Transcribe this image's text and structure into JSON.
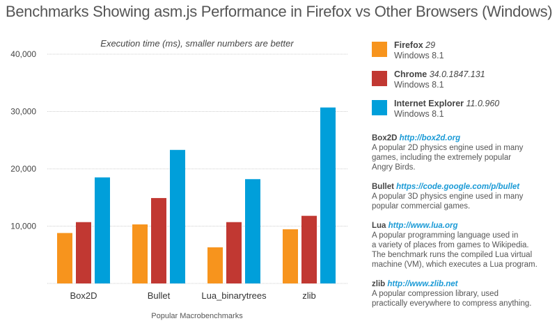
{
  "title": "Benchmarks Showing asm.js Performance in Firefox vs Other Browsers (Windows)",
  "chart_data": {
    "type": "bar",
    "title": "Execution time (ms), smaller numbers are better",
    "xlabel": "Popular Macrobenchmarks",
    "ylabel": "",
    "ylim": [
      0,
      40000
    ],
    "yticks": [
      "10,000",
      "20,000",
      "30,000",
      "40,000"
    ],
    "ytick_values": [
      10000,
      20000,
      30000,
      40000
    ],
    "grid": true,
    "legend_position": "right",
    "categories": [
      "Box2D",
      "Bullet",
      "Lua_binarytrees",
      "zlib"
    ],
    "series": [
      {
        "name": "Firefox",
        "version": "29",
        "os": "Windows 8.1",
        "color": "#f7941d",
        "values": [
          8800,
          10300,
          6300,
          9450
        ]
      },
      {
        "name": "Chrome",
        "version": "34.0.1847.131",
        "os": "Windows 8.1",
        "color": "#c13832",
        "values": [
          10700,
          14900,
          10700,
          11800
        ]
      },
      {
        "name": "Internet Explorer",
        "version": "11.0.960",
        "os": "Windows 8.1",
        "color": "#009fda",
        "values": [
          18500,
          23300,
          18200,
          30700
        ]
      }
    ]
  },
  "descriptions": [
    {
      "name": "Box2D",
      "url": "http://box2d.org",
      "lines": [
        "A popular 2D physics engine used in many",
        "games, including the extremely popular",
        "Angry Birds."
      ]
    },
    {
      "name": "Bullet",
      "url": "https://code.google.com/p/bullet",
      "lines": [
        "A popular 3D physics engine used in many",
        "popular commercial games."
      ]
    },
    {
      "name": "Lua",
      "url": "http://www.lua.org",
      "lines": [
        "A popular programming language used in",
        "a variety of places from games to Wikipedia.",
        "The benchmark runs the compiled Lua virtual",
        "machine (VM), which executes a Lua program."
      ]
    },
    {
      "name": "zlib",
      "url": "http://www.zlib.net",
      "lines": [
        "A popular compression library, used",
        "practically everywhere to compress anything."
      ]
    }
  ]
}
